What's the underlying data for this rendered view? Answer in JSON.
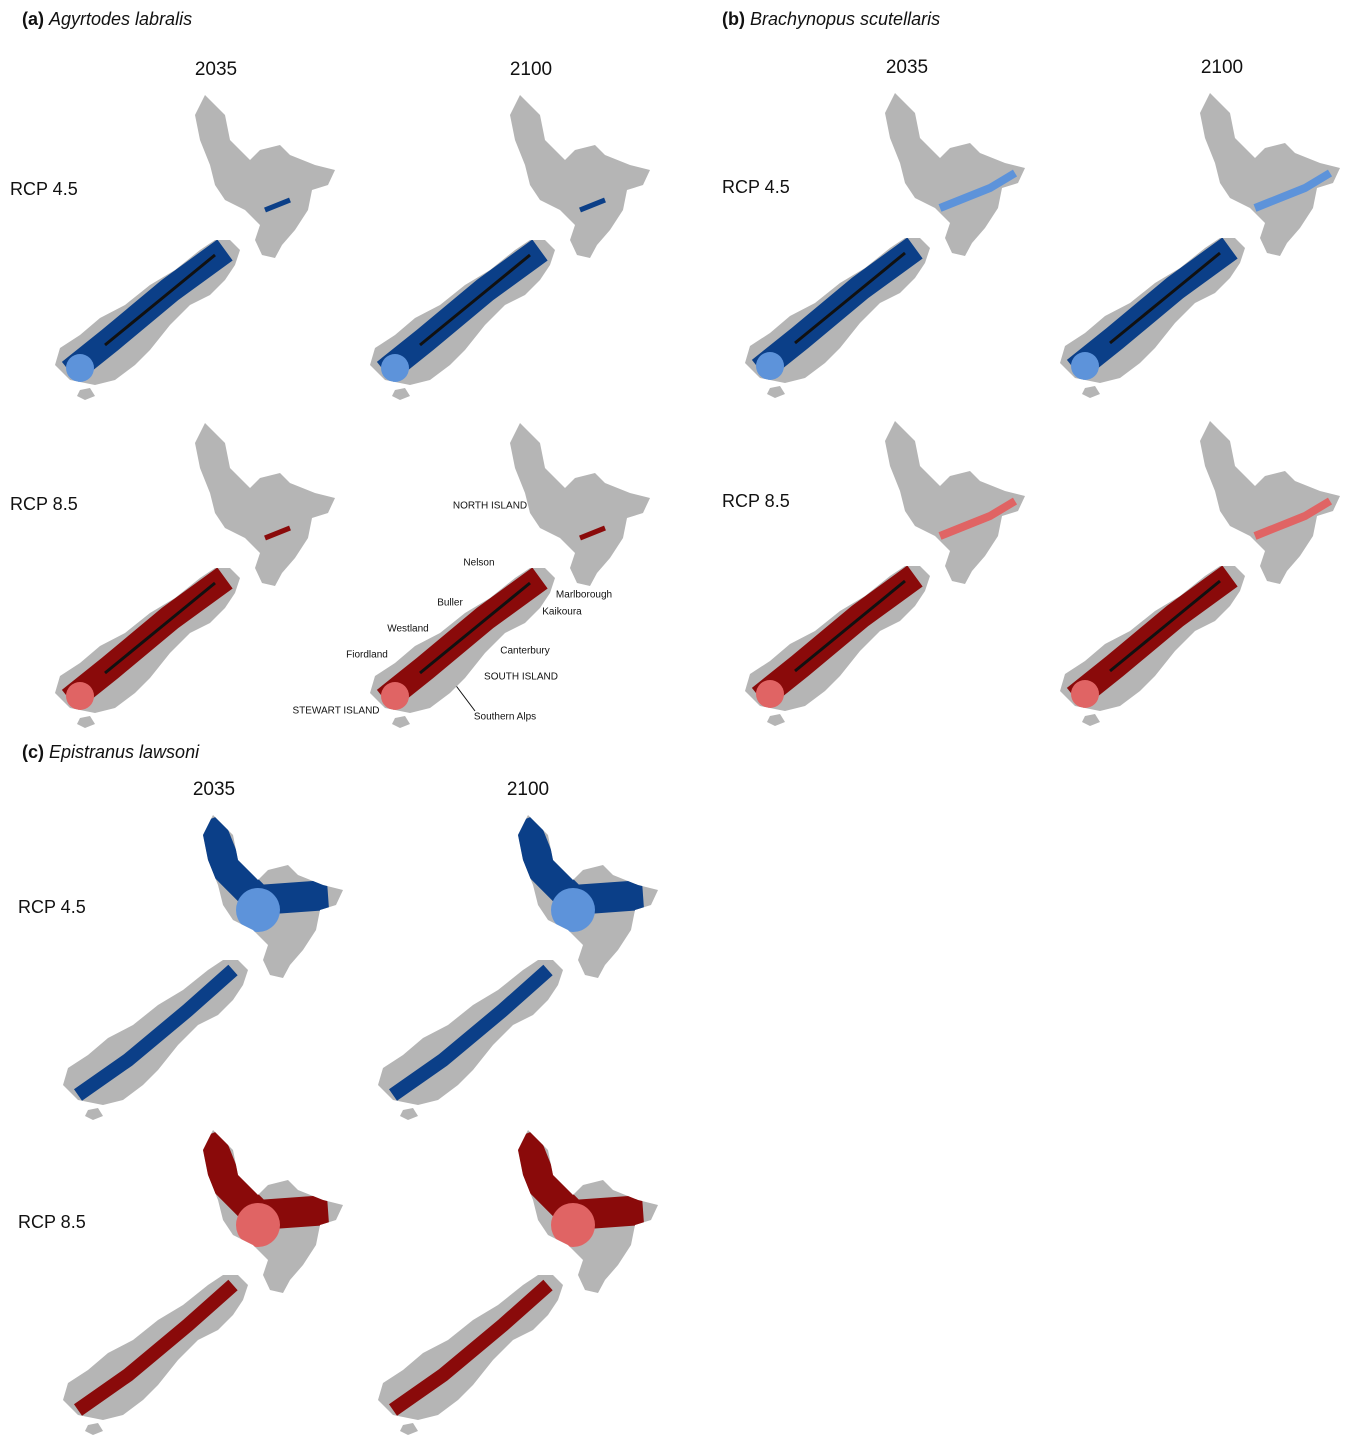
{
  "panels": [
    {
      "letter": "(a)",
      "species": "Agyrtodes labralis",
      "columns": [
        "2035",
        "2100"
      ],
      "rows": [
        "RCP 4.5",
        "RCP 8.5"
      ]
    },
    {
      "letter": "(b)",
      "species": "Brachynopus scutellaris",
      "columns": [
        "2035",
        "2100"
      ],
      "rows": [
        "RCP 4.5",
        "RCP 8.5"
      ]
    },
    {
      "letter": "(c)",
      "species": "Epistranus lawsoni",
      "columns": [
        "2035",
        "2100"
      ],
      "rows": [
        "RCP 4.5",
        "RCP 8.5"
      ]
    }
  ],
  "annotations": [
    "NORTH ISLAND",
    "Nelson",
    "Buller",
    "Marlborough",
    "Kaikoura",
    "Westland",
    "Fiordland",
    "Canterbury",
    "SOUTH ISLAND",
    "STEWART ISLAND",
    "Southern Alps"
  ]
}
